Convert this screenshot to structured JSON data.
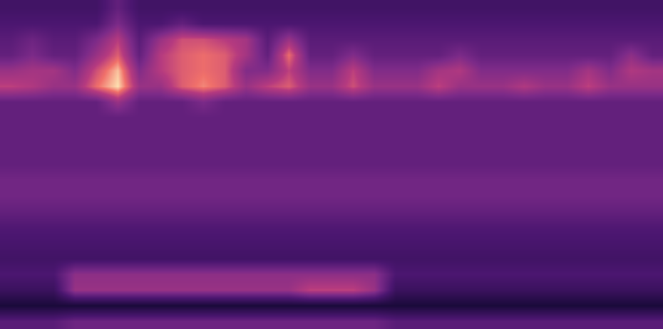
{
  "chart_data": {
    "type": "heatmap",
    "tick_labels": false,
    "cells": [
      [
        0.42,
        0.42,
        0.42,
        0.42,
        0.42,
        0.5,
        0.42,
        0.42,
        0.42,
        0.42,
        0.42,
        0.42,
        0.42,
        0.42,
        0.42,
        0.42,
        0.42,
        0.42,
        0.42,
        0.42,
        0.42,
        0.42,
        0.42,
        0.42,
        0.42,
        0.42,
        0.42,
        0.42,
        0.42,
        0.42,
        0.42
      ],
      [
        0.45,
        0.45,
        0.45,
        0.45,
        0.45,
        0.55,
        0.45,
        0.45,
        0.5,
        0.45,
        0.45,
        0.45,
        0.45,
        0.45,
        0.45,
        0.45,
        0.45,
        0.45,
        0.45,
        0.45,
        0.45,
        0.45,
        0.45,
        0.45,
        0.45,
        0.45,
        0.45,
        0.45,
        0.45,
        0.45,
        0.45
      ],
      [
        0.48,
        0.52,
        0.48,
        0.48,
        0.55,
        0.65,
        0.48,
        0.6,
        0.68,
        0.68,
        0.65,
        0.62,
        0.48,
        0.6,
        0.48,
        0.48,
        0.48,
        0.48,
        0.48,
        0.48,
        0.48,
        0.48,
        0.48,
        0.48,
        0.48,
        0.48,
        0.48,
        0.48,
        0.48,
        0.48,
        0.48
      ],
      [
        0.5,
        0.55,
        0.5,
        0.5,
        0.6,
        0.7,
        0.5,
        0.65,
        0.7,
        0.72,
        0.7,
        0.62,
        0.5,
        0.72,
        0.5,
        0.5,
        0.56,
        0.5,
        0.5,
        0.5,
        0.5,
        0.55,
        0.5,
        0.5,
        0.5,
        0.5,
        0.5,
        0.5,
        0.5,
        0.58,
        0.5
      ],
      [
        0.6,
        0.62,
        0.62,
        0.56,
        0.68,
        0.78,
        0.56,
        0.65,
        0.7,
        0.72,
        0.7,
        0.56,
        0.56,
        0.66,
        0.56,
        0.56,
        0.66,
        0.56,
        0.56,
        0.56,
        0.62,
        0.64,
        0.56,
        0.56,
        0.56,
        0.56,
        0.56,
        0.62,
        0.56,
        0.64,
        0.62
      ],
      [
        0.66,
        0.64,
        0.6,
        0.6,
        0.72,
        0.8,
        0.6,
        0.6,
        0.7,
        0.74,
        0.7,
        0.6,
        0.66,
        0.7,
        0.6,
        0.6,
        0.68,
        0.6,
        0.6,
        0.6,
        0.66,
        0.6,
        0.6,
        0.6,
        0.64,
        0.6,
        0.6,
        0.66,
        0.6,
        0.6,
        0.6
      ],
      [
        0.5,
        0.5,
        0.5,
        0.5,
        0.5,
        0.6,
        0.5,
        0.5,
        0.5,
        0.55,
        0.5,
        0.5,
        0.5,
        0.5,
        0.5,
        0.5,
        0.5,
        0.5,
        0.5,
        0.5,
        0.5,
        0.5,
        0.5,
        0.5,
        0.5,
        0.5,
        0.5,
        0.5,
        0.5,
        0.5,
        0.5
      ],
      [
        0.5,
        0.5,
        0.5,
        0.5,
        0.5,
        0.5,
        0.5,
        0.5,
        0.5,
        0.5,
        0.5,
        0.5,
        0.5,
        0.5,
        0.5,
        0.5,
        0.5,
        0.5,
        0.5,
        0.5,
        0.5,
        0.5,
        0.5,
        0.5,
        0.5,
        0.5,
        0.5,
        0.5,
        0.5,
        0.5,
        0.5
      ],
      [
        0.5,
        0.5,
        0.5,
        0.5,
        0.5,
        0.5,
        0.5,
        0.5,
        0.5,
        0.5,
        0.5,
        0.5,
        0.5,
        0.5,
        0.5,
        0.5,
        0.5,
        0.5,
        0.5,
        0.5,
        0.5,
        0.5,
        0.5,
        0.5,
        0.5,
        0.5,
        0.5,
        0.5,
        0.5,
        0.5,
        0.5
      ],
      [
        0.5,
        0.5,
        0.5,
        0.5,
        0.5,
        0.5,
        0.5,
        0.5,
        0.5,
        0.5,
        0.5,
        0.5,
        0.5,
        0.5,
        0.5,
        0.5,
        0.5,
        0.5,
        0.5,
        0.5,
        0.5,
        0.5,
        0.5,
        0.5,
        0.5,
        0.5,
        0.5,
        0.5,
        0.5,
        0.5,
        0.5
      ],
      [
        0.5,
        0.5,
        0.5,
        0.5,
        0.5,
        0.5,
        0.5,
        0.5,
        0.5,
        0.5,
        0.5,
        0.5,
        0.5,
        0.5,
        0.5,
        0.5,
        0.5,
        0.5,
        0.5,
        0.5,
        0.5,
        0.5,
        0.5,
        0.5,
        0.5,
        0.5,
        0.5,
        0.5,
        0.5,
        0.5,
        0.5
      ],
      [
        0.53,
        0.53,
        0.53,
        0.53,
        0.53,
        0.53,
        0.53,
        0.53,
        0.53,
        0.53,
        0.53,
        0.53,
        0.53,
        0.53,
        0.53,
        0.53,
        0.53,
        0.53,
        0.53,
        0.53,
        0.53,
        0.53,
        0.53,
        0.53,
        0.53,
        0.53,
        0.53,
        0.53,
        0.53,
        0.53,
        0.53
      ],
      [
        0.53,
        0.53,
        0.53,
        0.53,
        0.53,
        0.53,
        0.53,
        0.53,
        0.53,
        0.53,
        0.53,
        0.53,
        0.53,
        0.53,
        0.53,
        0.53,
        0.53,
        0.53,
        0.53,
        0.53,
        0.53,
        0.53,
        0.53,
        0.53,
        0.53,
        0.53,
        0.53,
        0.53,
        0.53,
        0.53,
        0.53
      ],
      [
        0.5,
        0.5,
        0.5,
        0.5,
        0.5,
        0.5,
        0.5,
        0.5,
        0.5,
        0.5,
        0.5,
        0.5,
        0.5,
        0.5,
        0.5,
        0.5,
        0.5,
        0.5,
        0.5,
        0.5,
        0.5,
        0.5,
        0.5,
        0.5,
        0.5,
        0.5,
        0.5,
        0.5,
        0.5,
        0.5,
        0.5
      ],
      [
        0.46,
        0.46,
        0.46,
        0.46,
        0.46,
        0.46,
        0.46,
        0.46,
        0.46,
        0.46,
        0.46,
        0.46,
        0.46,
        0.46,
        0.46,
        0.46,
        0.46,
        0.46,
        0.46,
        0.46,
        0.46,
        0.46,
        0.46,
        0.46,
        0.46,
        0.46,
        0.46,
        0.46,
        0.46,
        0.46,
        0.46
      ],
      [
        0.44,
        0.44,
        0.44,
        0.44,
        0.44,
        0.44,
        0.44,
        0.44,
        0.44,
        0.44,
        0.44,
        0.44,
        0.44,
        0.44,
        0.44,
        0.44,
        0.44,
        0.44,
        0.44,
        0.44,
        0.44,
        0.44,
        0.44,
        0.44,
        0.44,
        0.44,
        0.44,
        0.44,
        0.44,
        0.44,
        0.44
      ],
      [
        0.42,
        0.42,
        0.42,
        0.42,
        0.42,
        0.42,
        0.42,
        0.42,
        0.42,
        0.42,
        0.42,
        0.42,
        0.42,
        0.42,
        0.42,
        0.42,
        0.42,
        0.42,
        0.42,
        0.42,
        0.42,
        0.42,
        0.42,
        0.42,
        0.42,
        0.42,
        0.42,
        0.42,
        0.42,
        0.42,
        0.42
      ],
      [
        0.45,
        0.45,
        0.45,
        0.58,
        0.58,
        0.58,
        0.58,
        0.58,
        0.58,
        0.58,
        0.58,
        0.58,
        0.58,
        0.58,
        0.58,
        0.58,
        0.58,
        0.58,
        0.45,
        0.45,
        0.45,
        0.45,
        0.45,
        0.45,
        0.45,
        0.45,
        0.45,
        0.45,
        0.45,
        0.45,
        0.45
      ],
      [
        0.4,
        0.4,
        0.4,
        0.6,
        0.6,
        0.6,
        0.6,
        0.6,
        0.6,
        0.6,
        0.6,
        0.6,
        0.6,
        0.6,
        0.66,
        0.66,
        0.66,
        0.6,
        0.4,
        0.4,
        0.4,
        0.4,
        0.4,
        0.4,
        0.4,
        0.4,
        0.4,
        0.4,
        0.4,
        0.4,
        0.4
      ],
      [
        0.3,
        0.3,
        0.3,
        0.3,
        0.3,
        0.3,
        0.3,
        0.3,
        0.3,
        0.3,
        0.3,
        0.3,
        0.3,
        0.3,
        0.3,
        0.3,
        0.3,
        0.3,
        0.3,
        0.3,
        0.3,
        0.3,
        0.3,
        0.3,
        0.3,
        0.3,
        0.3,
        0.3,
        0.3,
        0.3,
        0.3
      ],
      [
        0.48,
        0.48,
        0.48,
        0.52,
        0.52,
        0.52,
        0.52,
        0.52,
        0.52,
        0.52,
        0.52,
        0.52,
        0.52,
        0.52,
        0.52,
        0.52,
        0.52,
        0.52,
        0.48,
        0.48,
        0.48,
        0.48,
        0.48,
        0.48,
        0.48,
        0.48,
        0.48,
        0.48,
        0.48,
        0.48,
        0.48
      ]
    ]
  }
}
